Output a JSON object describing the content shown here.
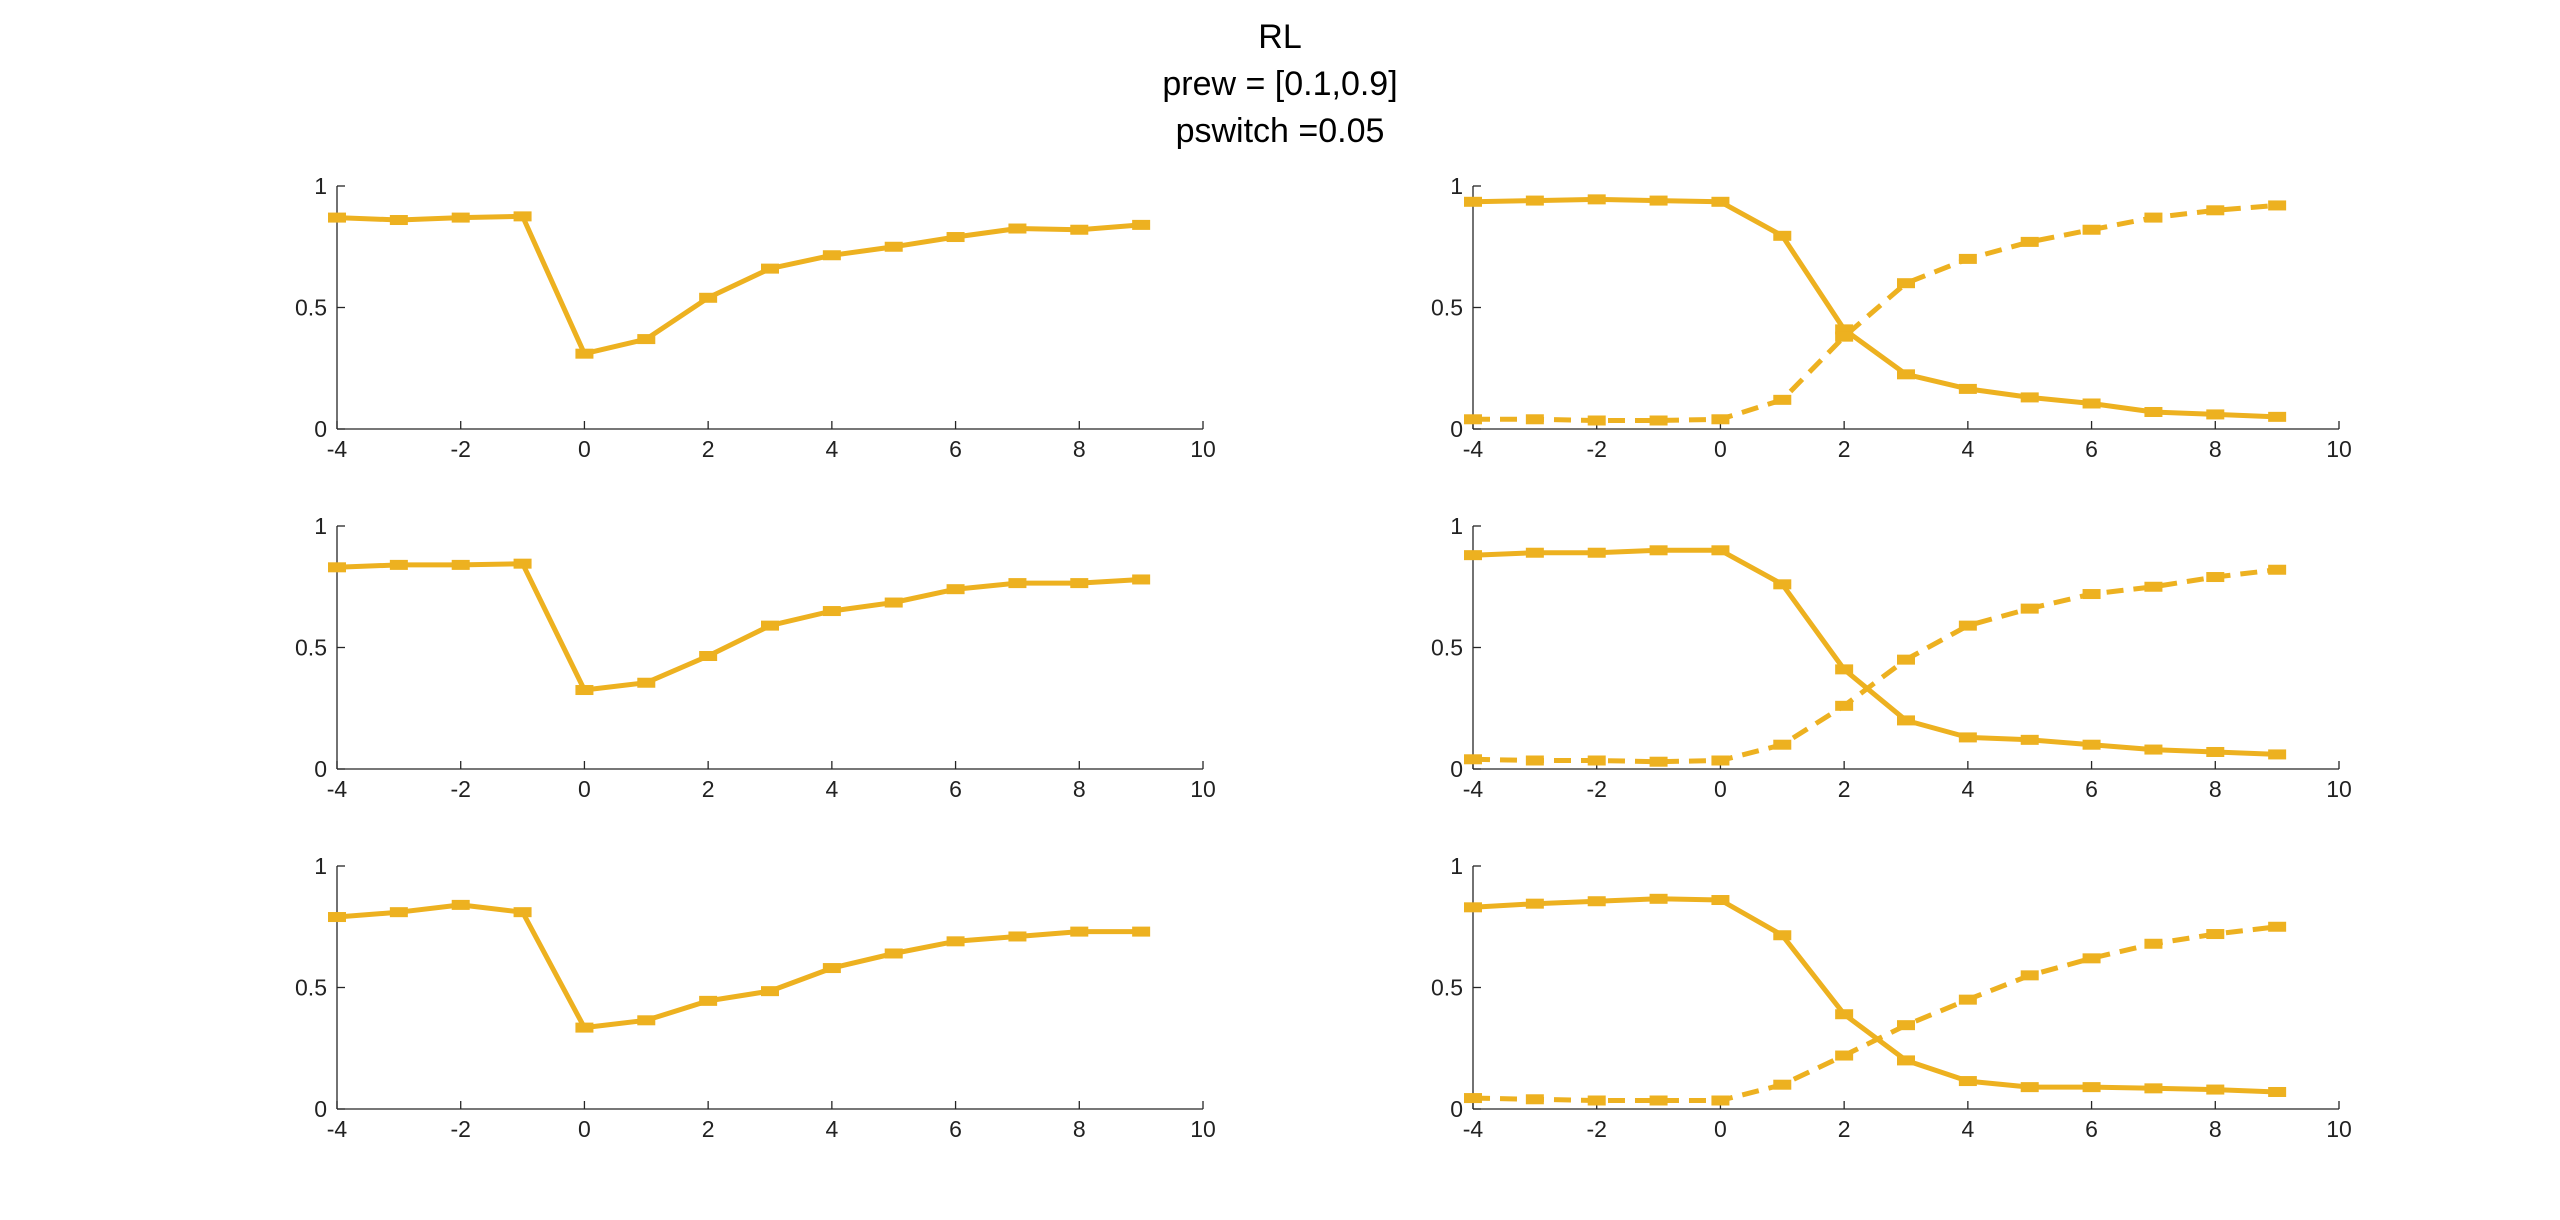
{
  "figure": {
    "title_lines": [
      "RL",
      "prew = [0.1,0.9]",
      "pswitch =0.05"
    ]
  },
  "colors": {
    "series": "#EDB120",
    "axis": "#262626",
    "text": "#222222"
  },
  "chart_data": [
    {
      "type": "line",
      "panel": "row1-left",
      "xlim": [
        -4,
        10
      ],
      "ylim": [
        0,
        1
      ],
      "xticks": [
        "-4",
        "-2",
        "0",
        "2",
        "4",
        "6",
        "8",
        "10"
      ],
      "yticks": [
        "0",
        "0.5",
        "1"
      ],
      "x": [
        -4,
        -3,
        -2,
        -1,
        0,
        1,
        2,
        3,
        4,
        5,
        6,
        7,
        8,
        9
      ],
      "series": [
        {
          "style": "solid",
          "values": [
            0.87,
            0.86,
            0.87,
            0.875,
            0.31,
            0.37,
            0.54,
            0.66,
            0.715,
            0.75,
            0.79,
            0.825,
            0.82,
            0.84
          ]
        }
      ]
    },
    {
      "type": "line",
      "panel": "row1-right",
      "xlim": [
        -4,
        10
      ],
      "ylim": [
        0,
        1
      ],
      "xticks": [
        "-4",
        "-2",
        "0",
        "2",
        "4",
        "6",
        "8",
        "10"
      ],
      "yticks": [
        "0",
        "0.5",
        "1"
      ],
      "x": [
        -4,
        -3,
        -2,
        -1,
        0,
        1,
        2,
        3,
        4,
        5,
        6,
        7,
        8,
        9
      ],
      "series": [
        {
          "style": "solid",
          "values": [
            0.935,
            0.94,
            0.945,
            0.94,
            0.935,
            0.795,
            0.41,
            0.225,
            0.165,
            0.13,
            0.105,
            0.07,
            0.06,
            0.05
          ]
        },
        {
          "style": "dashed",
          "values": [
            0.04,
            0.04,
            0.035,
            0.035,
            0.04,
            0.12,
            0.38,
            0.6,
            0.7,
            0.77,
            0.82,
            0.87,
            0.9,
            0.92
          ]
        }
      ]
    },
    {
      "type": "line",
      "panel": "row2-left",
      "xlim": [
        -4,
        10
      ],
      "ylim": [
        0,
        1
      ],
      "xticks": [
        "-4",
        "-2",
        "0",
        "2",
        "4",
        "6",
        "8",
        "10"
      ],
      "yticks": [
        "0",
        "0.5",
        "1"
      ],
      "x": [
        -4,
        -3,
        -2,
        -1,
        0,
        1,
        2,
        3,
        4,
        5,
        6,
        7,
        8,
        9
      ],
      "series": [
        {
          "style": "solid",
          "values": [
            0.83,
            0.84,
            0.84,
            0.845,
            0.325,
            0.355,
            0.465,
            0.59,
            0.65,
            0.685,
            0.74,
            0.765,
            0.765,
            0.78
          ]
        }
      ]
    },
    {
      "type": "line",
      "panel": "row2-right",
      "xlim": [
        -4,
        10
      ],
      "ylim": [
        0,
        1
      ],
      "xticks": [
        "-4",
        "-2",
        "0",
        "2",
        "4",
        "6",
        "8",
        "10"
      ],
      "yticks": [
        "0",
        "0.5",
        "1"
      ],
      "x": [
        -4,
        -3,
        -2,
        -1,
        0,
        1,
        2,
        3,
        4,
        5,
        6,
        7,
        8,
        9
      ],
      "series": [
        {
          "style": "solid",
          "values": [
            0.88,
            0.89,
            0.89,
            0.9,
            0.9,
            0.76,
            0.41,
            0.2,
            0.13,
            0.12,
            0.1,
            0.08,
            0.07,
            0.06
          ]
        },
        {
          "style": "dashed",
          "values": [
            0.04,
            0.035,
            0.035,
            0.03,
            0.035,
            0.1,
            0.26,
            0.45,
            0.59,
            0.66,
            0.72,
            0.75,
            0.79,
            0.82
          ]
        }
      ]
    },
    {
      "type": "line",
      "panel": "row3-left",
      "xlim": [
        -4,
        10
      ],
      "ylim": [
        0,
        1
      ],
      "xticks": [
        "-4",
        "-2",
        "0",
        "2",
        "4",
        "6",
        "8",
        "10"
      ],
      "yticks": [
        "0",
        "0.5",
        "1"
      ],
      "x": [
        -4,
        -3,
        -2,
        -1,
        0,
        1,
        2,
        3,
        4,
        5,
        6,
        7,
        8,
        9
      ],
      "series": [
        {
          "style": "solid",
          "values": [
            0.79,
            0.81,
            0.84,
            0.81,
            0.335,
            0.365,
            0.445,
            0.485,
            0.58,
            0.64,
            0.69,
            0.71,
            0.73,
            0.73
          ]
        }
      ]
    },
    {
      "type": "line",
      "panel": "row3-right",
      "xlim": [
        -4,
        10
      ],
      "ylim": [
        0,
        1
      ],
      "xticks": [
        "-4",
        "-2",
        "0",
        "2",
        "4",
        "6",
        "8",
        "10"
      ],
      "yticks": [
        "0",
        "0.5",
        "1"
      ],
      "x": [
        -4,
        -3,
        -2,
        -1,
        0,
        1,
        2,
        3,
        4,
        5,
        6,
        7,
        8,
        9
      ],
      "series": [
        {
          "style": "solid",
          "values": [
            0.83,
            0.845,
            0.855,
            0.865,
            0.86,
            0.715,
            0.39,
            0.2,
            0.115,
            0.09,
            0.09,
            0.085,
            0.08,
            0.07
          ]
        },
        {
          "style": "dashed",
          "values": [
            0.045,
            0.04,
            0.035,
            0.035,
            0.035,
            0.1,
            0.22,
            0.345,
            0.45,
            0.55,
            0.62,
            0.68,
            0.72,
            0.75
          ]
        }
      ]
    }
  ]
}
